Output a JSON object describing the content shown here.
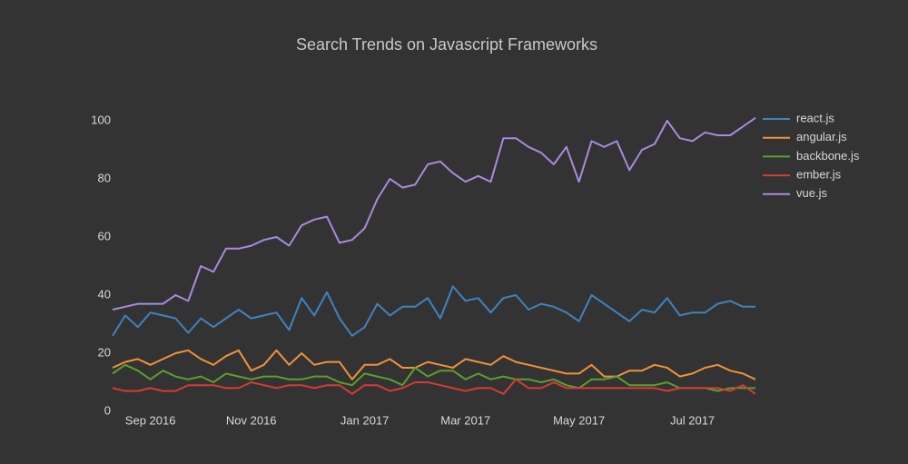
{
  "chart_data": {
    "type": "line",
    "title": "Search Trends on Javascript Frameworks",
    "categories": [
      null,
      null,
      null,
      "Sep 2016",
      null,
      null,
      null,
      null,
      null,
      null,
      null,
      "Nov 2016",
      null,
      null,
      null,
      null,
      null,
      null,
      null,
      null,
      "Jan 2017",
      null,
      null,
      null,
      null,
      null,
      null,
      null,
      "Mar 2017",
      null,
      null,
      null,
      null,
      null,
      null,
      null,
      null,
      "May 2017",
      null,
      null,
      null,
      null,
      null,
      null,
      null,
      null,
      "Jul 2017",
      null,
      null,
      null,
      null,
      null
    ],
    "series": [
      {
        "name": "react.js",
        "color": "#3f83bf",
        "values": [
          26,
          33,
          29,
          34,
          33,
          32,
          27,
          32,
          29,
          32,
          35,
          32,
          33,
          34,
          28,
          39,
          33,
          41,
          32,
          26,
          29,
          37,
          33,
          36,
          36,
          39,
          32,
          43,
          38,
          39,
          34,
          39,
          40,
          35,
          37,
          36,
          34,
          31,
          40,
          37,
          34,
          31,
          35,
          34,
          39,
          33,
          34,
          34,
          37,
          38,
          36,
          36
        ]
      },
      {
        "name": "angular.js",
        "color": "#f0923a",
        "values": [
          15,
          17,
          18,
          16,
          18,
          20,
          21,
          18,
          16,
          19,
          21,
          14,
          16,
          21,
          16,
          20,
          16,
          17,
          17,
          11,
          16,
          16,
          18,
          15,
          15,
          17,
          16,
          15,
          18,
          17,
          16,
          19,
          17,
          16,
          15,
          14,
          13,
          13,
          16,
          12,
          12,
          14,
          14,
          16,
          15,
          12,
          13,
          15,
          16,
          14,
          13,
          11
        ]
      },
      {
        "name": "backbone.js",
        "color": "#59a02f",
        "values": [
          13,
          16,
          14,
          11,
          14,
          12,
          11,
          12,
          10,
          13,
          12,
          11,
          12,
          12,
          11,
          11,
          12,
          12,
          10,
          9,
          13,
          12,
          11,
          9,
          15,
          12,
          14,
          14,
          11,
          13,
          11,
          12,
          11,
          11,
          10,
          11,
          9,
          8,
          11,
          11,
          12,
          9,
          9,
          9,
          10,
          8,
          8,
          8,
          7,
          8,
          8,
          8
        ]
      },
      {
        "name": "ember.js",
        "color": "#d63b34",
        "values": [
          8,
          7,
          7,
          8,
          7,
          7,
          9,
          9,
          9,
          8,
          8,
          10,
          9,
          8,
          9,
          9,
          8,
          9,
          9,
          6,
          9,
          9,
          7,
          8,
          10,
          10,
          9,
          8,
          7,
          8,
          8,
          6,
          11,
          8,
          8,
          10,
          8,
          8,
          8,
          8,
          8,
          8,
          8,
          8,
          7,
          8,
          8,
          8,
          8,
          7,
          9,
          6
        ]
      },
      {
        "name": "vue.js",
        "color": "#a98bdc",
        "values": [
          35,
          36,
          37,
          37,
          37,
          40,
          38,
          50,
          48,
          56,
          56,
          57,
          59,
          60,
          57,
          64,
          66,
          67,
          58,
          59,
          63,
          73,
          80,
          77,
          78,
          85,
          86,
          82,
          79,
          81,
          79,
          94,
          94,
          91,
          89,
          85,
          91,
          79,
          93,
          91,
          93,
          83,
          90,
          92,
          100,
          94,
          93,
          96,
          95,
          95,
          98,
          101
        ]
      }
    ],
    "ylim": [
      0,
      100
    ],
    "yticks": [
      0,
      20,
      40,
      60,
      80,
      100
    ],
    "grid": false,
    "legend": "right"
  }
}
